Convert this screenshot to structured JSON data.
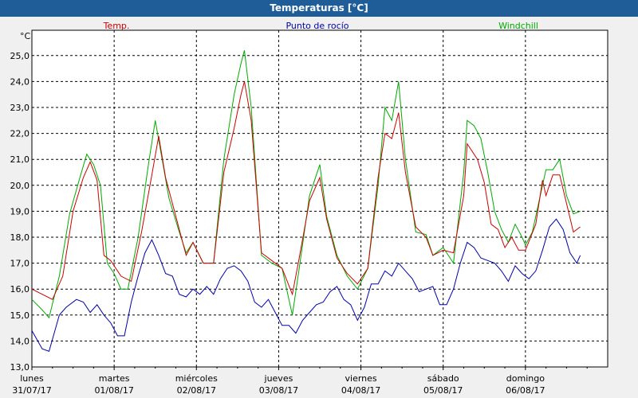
{
  "window": {
    "title": "Temperaturas [°C]"
  },
  "chart_data": {
    "type": "line",
    "title": "Temperaturas [°C]",
    "ylabel": "°C",
    "ylim": [
      13.0,
      25.5
    ],
    "yticks": [
      "13,0",
      "14,0",
      "15,0",
      "16,0",
      "17,0",
      "18,0",
      "19,0",
      "20,0",
      "21,0",
      "22,0",
      "23,0",
      "24,0",
      "25,0"
    ],
    "grid": true,
    "legend_position": "top",
    "days": [
      {
        "day": "lunes",
        "date": "31/07/17"
      },
      {
        "day": "martes",
        "date": "01/08/17"
      },
      {
        "day": "miércoles",
        "date": "02/08/17"
      },
      {
        "day": "jueves",
        "date": "03/08/17"
      },
      {
        "day": "viernes",
        "date": "04/08/17"
      },
      {
        "day": "sábado",
        "date": "05/08/17"
      },
      {
        "day": "domingo",
        "date": "06/08/17"
      }
    ],
    "x_unit": "hours since 31/07/17 00:00",
    "series": [
      {
        "name": "Temp.",
        "color": "#cc0000",
        "points": [
          [
            0,
            16.0
          ],
          [
            6,
            15.6
          ],
          [
            9,
            16.5
          ],
          [
            12,
            19.0
          ],
          [
            15,
            20.3
          ],
          [
            17,
            20.9
          ],
          [
            19,
            20.2
          ],
          [
            21,
            17.3
          ],
          [
            23,
            17.1
          ],
          [
            26,
            16.5
          ],
          [
            29,
            16.3
          ],
          [
            32,
            18.2
          ],
          [
            35,
            20.4
          ],
          [
            37,
            21.9
          ],
          [
            39,
            20.3
          ],
          [
            42,
            18.8
          ],
          [
            45,
            17.3
          ],
          [
            47,
            17.8
          ],
          [
            50,
            17.0
          ],
          [
            53,
            17.0
          ],
          [
            56,
            20.5
          ],
          [
            59,
            22.2
          ],
          [
            61,
            23.5
          ],
          [
            62,
            24.0
          ],
          [
            64,
            22.5
          ],
          [
            67,
            17.4
          ],
          [
            70,
            17.1
          ],
          [
            73,
            16.8
          ],
          [
            76,
            15.8
          ],
          [
            78,
            17.2
          ],
          [
            81,
            19.4
          ],
          [
            84,
            20.3
          ],
          [
            86,
            18.7
          ],
          [
            89,
            17.2
          ],
          [
            92,
            16.6
          ],
          [
            95,
            16.2
          ],
          [
            98,
            16.8
          ],
          [
            101,
            20.3
          ],
          [
            103,
            22.0
          ],
          [
            105,
            21.8
          ],
          [
            107,
            22.8
          ],
          [
            109,
            20.5
          ],
          [
            112,
            18.4
          ],
          [
            115,
            18.0
          ],
          [
            117,
            17.3
          ],
          [
            120,
            17.5
          ],
          [
            123,
            17.4
          ],
          [
            126,
            19.6
          ],
          [
            127,
            21.6
          ],
          [
            130,
            21.0
          ],
          [
            132,
            20.1
          ],
          [
            134,
            18.5
          ],
          [
            136,
            18.3
          ],
          [
            138,
            17.6
          ],
          [
            140,
            18.0
          ],
          [
            142,
            17.5
          ],
          [
            144,
            17.5
          ],
          [
            147,
            18.5
          ],
          [
            149,
            20.2
          ],
          [
            150,
            19.6
          ],
          [
            152,
            20.4
          ],
          [
            154,
            20.4
          ],
          [
            156,
            19.3
          ],
          [
            158,
            18.2
          ],
          [
            160,
            18.4
          ]
        ]
      },
      {
        "name": "Punto de rocío",
        "color": "#0000aa",
        "points": [
          [
            0,
            14.4
          ],
          [
            3,
            13.7
          ],
          [
            5,
            13.6
          ],
          [
            8,
            15.0
          ],
          [
            10,
            15.3
          ],
          [
            13,
            15.6
          ],
          [
            15,
            15.5
          ],
          [
            17,
            15.1
          ],
          [
            19,
            15.4
          ],
          [
            21,
            15.0
          ],
          [
            23,
            14.7
          ],
          [
            25,
            14.2
          ],
          [
            27,
            14.2
          ],
          [
            29,
            15.5
          ],
          [
            31,
            16.5
          ],
          [
            33,
            17.4
          ],
          [
            35,
            17.9
          ],
          [
            37,
            17.3
          ],
          [
            39,
            16.6
          ],
          [
            41,
            16.5
          ],
          [
            43,
            15.8
          ],
          [
            45,
            15.7
          ],
          [
            47,
            16.0
          ],
          [
            49,
            15.8
          ],
          [
            51,
            16.1
          ],
          [
            53,
            15.8
          ],
          [
            55,
            16.4
          ],
          [
            57,
            16.8
          ],
          [
            59,
            16.9
          ],
          [
            61,
            16.7
          ],
          [
            63,
            16.3
          ],
          [
            65,
            15.5
          ],
          [
            67,
            15.3
          ],
          [
            69,
            15.6
          ],
          [
            71,
            15.1
          ],
          [
            73,
            14.6
          ],
          [
            75,
            14.6
          ],
          [
            77,
            14.3
          ],
          [
            79,
            14.8
          ],
          [
            81,
            15.1
          ],
          [
            83,
            15.4
          ],
          [
            85,
            15.5
          ],
          [
            87,
            15.9
          ],
          [
            89,
            16.1
          ],
          [
            91,
            15.6
          ],
          [
            93,
            15.4
          ],
          [
            95,
            14.8
          ],
          [
            97,
            15.3
          ],
          [
            99,
            16.2
          ],
          [
            101,
            16.2
          ],
          [
            103,
            16.7
          ],
          [
            105,
            16.5
          ],
          [
            107,
            17.0
          ],
          [
            109,
            16.7
          ],
          [
            111,
            16.4
          ],
          [
            113,
            15.9
          ],
          [
            115,
            16.0
          ],
          [
            117,
            16.1
          ],
          [
            119,
            15.4
          ],
          [
            121,
            15.4
          ],
          [
            123,
            16.0
          ],
          [
            125,
            17.0
          ],
          [
            127,
            17.8
          ],
          [
            129,
            17.6
          ],
          [
            131,
            17.2
          ],
          [
            133,
            17.1
          ],
          [
            135,
            17.0
          ],
          [
            137,
            16.7
          ],
          [
            139,
            16.3
          ],
          [
            141,
            16.9
          ],
          [
            143,
            16.6
          ],
          [
            145,
            16.4
          ],
          [
            147,
            16.7
          ],
          [
            149,
            17.5
          ],
          [
            151,
            18.4
          ],
          [
            153,
            18.7
          ],
          [
            155,
            18.3
          ],
          [
            157,
            17.4
          ],
          [
            159,
            17.0
          ],
          [
            160,
            17.3
          ]
        ]
      },
      {
        "name": "Windchill",
        "color": "#00aa00",
        "points": [
          [
            0,
            15.6
          ],
          [
            3,
            15.2
          ],
          [
            5,
            14.9
          ],
          [
            8,
            16.5
          ],
          [
            11,
            18.9
          ],
          [
            14,
            20.3
          ],
          [
            16,
            21.2
          ],
          [
            18,
            20.8
          ],
          [
            20,
            20.0
          ],
          [
            22,
            17.0
          ],
          [
            24,
            16.6
          ],
          [
            26,
            16.0
          ],
          [
            28,
            16.0
          ],
          [
            31,
            18.0
          ],
          [
            34,
            20.8
          ],
          [
            36,
            22.5
          ],
          [
            38,
            21.0
          ],
          [
            40,
            19.5
          ],
          [
            43,
            18.2
          ],
          [
            45,
            17.4
          ],
          [
            47,
            17.8
          ],
          [
            50,
            17.0
          ],
          [
            53,
            17.0
          ],
          [
            56,
            21.0
          ],
          [
            59,
            23.5
          ],
          [
            61,
            24.7
          ],
          [
            62,
            25.2
          ],
          [
            64,
            23.0
          ],
          [
            67,
            17.3
          ],
          [
            70,
            17.0
          ],
          [
            73,
            16.8
          ],
          [
            76,
            15.0
          ],
          [
            78,
            16.8
          ],
          [
            81,
            19.6
          ],
          [
            84,
            20.8
          ],
          [
            86,
            18.8
          ],
          [
            89,
            17.3
          ],
          [
            92,
            16.5
          ],
          [
            95,
            16.0
          ],
          [
            98,
            16.8
          ],
          [
            101,
            20.0
          ],
          [
            103,
            23.0
          ],
          [
            105,
            22.5
          ],
          [
            107,
            24.0
          ],
          [
            109,
            21.0
          ],
          [
            112,
            18.2
          ],
          [
            115,
            18.1
          ],
          [
            117,
            17.3
          ],
          [
            120,
            17.6
          ],
          [
            123,
            17.0
          ],
          [
            126,
            20.5
          ],
          [
            127,
            22.5
          ],
          [
            129,
            22.3
          ],
          [
            131,
            21.8
          ],
          [
            133,
            20.5
          ],
          [
            135,
            19.0
          ],
          [
            137,
            18.3
          ],
          [
            139,
            17.8
          ],
          [
            141,
            18.5
          ],
          [
            143,
            18.0
          ],
          [
            144,
            17.7
          ],
          [
            146,
            18.2
          ],
          [
            148,
            19.4
          ],
          [
            150,
            20.6
          ],
          [
            152,
            20.6
          ],
          [
            154,
            21.0
          ],
          [
            156,
            19.6
          ],
          [
            158,
            18.9
          ],
          [
            160,
            19.0
          ]
        ]
      }
    ]
  }
}
